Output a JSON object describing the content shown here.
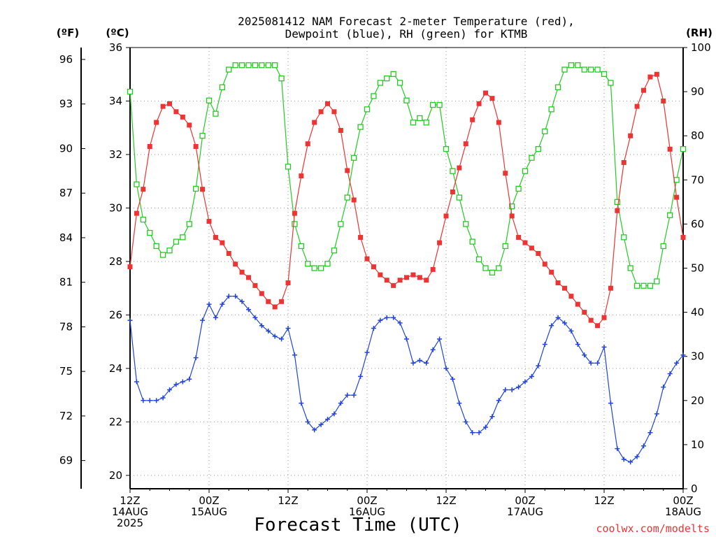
{
  "chart_data": {
    "type": "line",
    "title_line1": "2025081412 NAM Forecast 2-meter Temperature (red),",
    "title_line2": "Dewpoint (blue), RH (green) for KTMB",
    "xlabel": "Forecast Time (UTC)",
    "credit": "coolwx.com/modelts",
    "x_hours": [
      0,
      1,
      2,
      3,
      4,
      5,
      6,
      7,
      8,
      9,
      10,
      11,
      12,
      13,
      14,
      15,
      16,
      17,
      18,
      19,
      20,
      21,
      22,
      23,
      24,
      25,
      26,
      27,
      28,
      29,
      30,
      31,
      32,
      33,
      34,
      35,
      36,
      37,
      38,
      39,
      40,
      41,
      42,
      43,
      44,
      45,
      46,
      47,
      48,
      49,
      50,
      51,
      52,
      53,
      54,
      55,
      56,
      57,
      58,
      59,
      60,
      61,
      62,
      63,
      64,
      65,
      66,
      67,
      68,
      69,
      70,
      71,
      72,
      73,
      74,
      75,
      76,
      77,
      78,
      79,
      80,
      81,
      82,
      83,
      84
    ],
    "x_ticks": [
      {
        "hour": 0,
        "lines": [
          "12Z",
          "14AUG",
          "2025"
        ]
      },
      {
        "hour": 12,
        "lines": [
          "00Z",
          "15AUG"
        ]
      },
      {
        "hour": 24,
        "lines": [
          "12Z"
        ]
      },
      {
        "hour": 36,
        "lines": [
          "00Z",
          "16AUG"
        ]
      },
      {
        "hour": 48,
        "lines": [
          "12Z"
        ]
      },
      {
        "hour": 60,
        "lines": [
          "00Z",
          "17AUG"
        ]
      },
      {
        "hour": 72,
        "lines": [
          "12Z"
        ]
      },
      {
        "hour": 84,
        "lines": [
          "00Z",
          "18AUG"
        ]
      }
    ],
    "celsius_axis": {
      "label": "(ºC)",
      "min": 19.5,
      "max": 36,
      "ticks": [
        20,
        22,
        24,
        26,
        28,
        30,
        32,
        34,
        36
      ]
    },
    "fahrenheit_axis": {
      "label": "(ºF)",
      "ticks": [
        69,
        72,
        75,
        78,
        81,
        84,
        87,
        90,
        93,
        96
      ]
    },
    "rh_axis": {
      "label": "(RH)",
      "min": 0,
      "max": 100,
      "ticks": [
        0,
        10,
        20,
        30,
        40,
        50,
        60,
        70,
        80,
        90,
        100
      ]
    },
    "series": [
      {
        "key": "temperature",
        "axis": "celsius",
        "color": "#ee3333",
        "marker": "filled-square",
        "values": [
          27.8,
          29.8,
          30.7,
          32.3,
          33.2,
          33.8,
          33.9,
          33.6,
          33.4,
          33.1,
          32.3,
          30.7,
          29.5,
          28.9,
          28.7,
          28.3,
          27.9,
          27.6,
          27.4,
          27.1,
          26.8,
          26.5,
          26.3,
          26.5,
          27.2,
          29.8,
          31.2,
          32.4,
          33.2,
          33.6,
          33.9,
          33.6,
          32.9,
          31.4,
          30.3,
          28.9,
          28.1,
          27.8,
          27.5,
          27.3,
          27.1,
          27.3,
          27.4,
          27.5,
          27.4,
          27.3,
          27.7,
          28.7,
          29.7,
          30.6,
          31.5,
          32.4,
          33.3,
          33.9,
          34.3,
          34.1,
          33.2,
          31.3,
          29.7,
          28.9,
          28.7,
          28.5,
          28.3,
          27.9,
          27.6,
          27.2,
          27.0,
          26.7,
          26.4,
          26.1,
          25.8,
          25.6,
          25.9,
          27.0,
          29.9,
          31.7,
          32.7,
          33.8,
          34.4,
          34.9,
          35.0,
          34.0,
          32.2,
          30.4,
          28.9
        ]
      },
      {
        "key": "dewpoint",
        "axis": "celsius",
        "color": "#2244dd",
        "marker": "plus",
        "values": [
          25.8,
          23.5,
          22.8,
          22.8,
          22.8,
          22.9,
          23.2,
          23.4,
          23.5,
          23.6,
          24.4,
          25.8,
          26.4,
          25.9,
          26.4,
          26.7,
          26.7,
          26.5,
          26.2,
          25.9,
          25.6,
          25.4,
          25.2,
          25.1,
          25.5,
          24.5,
          22.7,
          22.0,
          21.7,
          21.9,
          22.1,
          22.3,
          22.7,
          23.0,
          23.0,
          23.7,
          24.6,
          25.5,
          25.8,
          25.9,
          25.9,
          25.7,
          25.1,
          24.2,
          24.3,
          24.2,
          24.7,
          25.1,
          24.0,
          23.6,
          22.7,
          22.0,
          21.6,
          21.6,
          21.8,
          22.2,
          22.8,
          23.2,
          23.2,
          23.3,
          23.5,
          23.7,
          24.1,
          24.9,
          25.6,
          25.9,
          25.7,
          25.4,
          24.9,
          24.5,
          24.2,
          24.2,
          24.8,
          22.7,
          21.0,
          20.6,
          20.5,
          20.7,
          21.1,
          21.6,
          22.3,
          23.3,
          23.8,
          24.2,
          24.5
        ]
      },
      {
        "key": "rh",
        "axis": "rh",
        "color": "#22cc22",
        "marker": "open-square",
        "values": [
          90,
          69,
          61,
          58,
          55,
          53,
          54,
          56,
          57,
          60,
          68,
          80,
          88,
          85,
          91,
          95,
          96,
          96,
          96,
          96,
          96,
          96,
          96,
          93,
          73,
          60,
          55,
          51,
          50,
          50,
          51,
          54,
          60,
          66,
          75,
          82,
          86,
          89,
          92,
          93,
          94,
          92,
          88,
          83,
          84,
          83,
          87,
          87,
          77,
          72,
          66,
          60,
          56,
          52,
          50,
          49,
          50,
          55,
          64,
          68,
          72,
          75,
          77,
          81,
          86,
          91,
          95,
          96,
          96,
          95,
          95,
          95,
          94,
          92,
          65,
          57,
          50,
          46,
          46,
          46,
          47,
          55,
          62,
          70,
          77
        ]
      }
    ]
  }
}
